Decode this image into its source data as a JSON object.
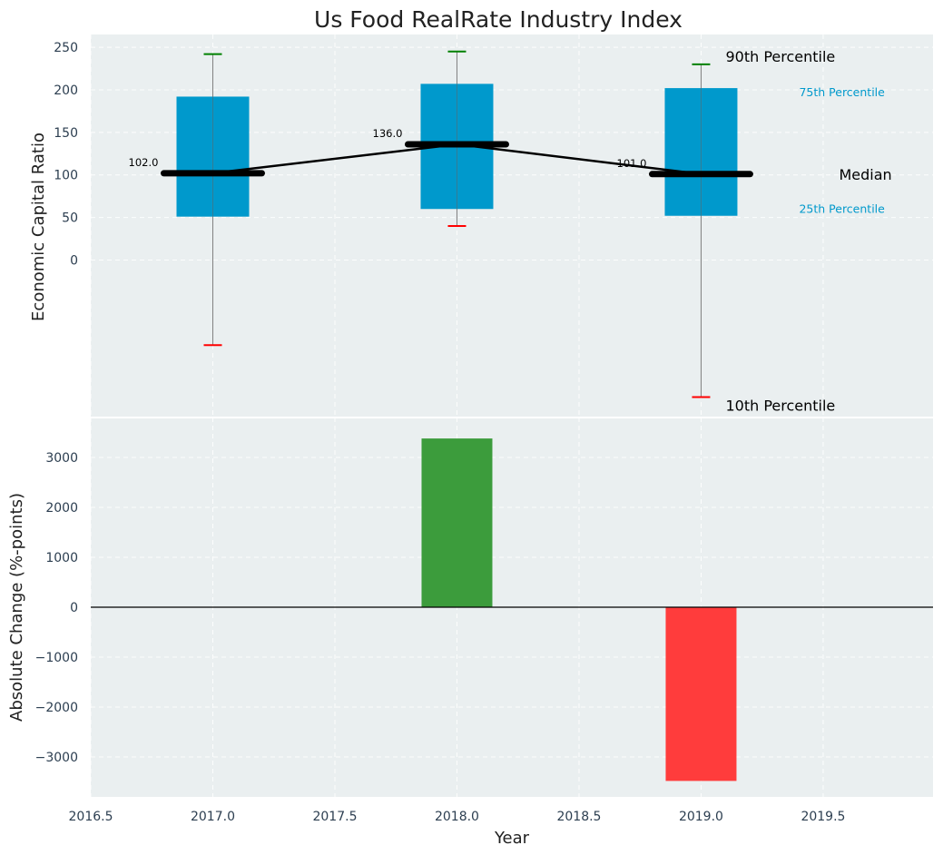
{
  "chart_data": [
    {
      "type": "box",
      "title": "Us Food RealRate Industry Index",
      "ylabel": "Economic Capital Ratio",
      "xlim": [
        2016.5,
        2019.95
      ],
      "ylim": [
        -185,
        265
      ],
      "yticks": [
        0,
        50,
        100,
        150,
        200,
        250
      ],
      "grid": true,
      "boxes": [
        {
          "x": 2017,
          "p10": -100,
          "q1": 51,
          "median": 102,
          "q3": 192,
          "p90": 242
        },
        {
          "x": 2018,
          "p10": 40,
          "q1": 60,
          "median": 136,
          "q3": 207,
          "p90": 245
        },
        {
          "x": 2019,
          "p10": -161,
          "q1": 52,
          "median": 101,
          "q3": 202,
          "p90": 230
        }
      ],
      "median_labels": [
        "102.0",
        "136.0",
        "101.0"
      ],
      "legend": {
        "p90": "90th Percentile",
        "q3": "75th Percentile",
        "median": "Median",
        "q1": "25th Percentile",
        "p10": "10th Percentile"
      },
      "colors": {
        "box": "#0099cc",
        "whisker_top": "#008000",
        "whisker_bottom": "#ff0000",
        "median": "#000000",
        "legend_quartile": "#0099cc",
        "background": "#eaeff0"
      }
    },
    {
      "type": "bar",
      "ylabel": "Absolute Change (%-points)",
      "xlabel": "Year",
      "xlim": [
        2016.5,
        2019.95
      ],
      "ylim": [
        -3800,
        3800
      ],
      "yticks": [
        -3000,
        -2000,
        -1000,
        0,
        1000,
        2000,
        3000
      ],
      "ytick_labels": [
        "−3000",
        "−2000",
        "−1000",
        "0",
        "1000",
        "2000",
        "3000"
      ],
      "xticks": [
        2016.5,
        2017.0,
        2017.5,
        2018.0,
        2018.5,
        2019.0,
        2019.5
      ],
      "xtick_labels": [
        "2016.5",
        "2017.0",
        "2017.5",
        "2018.0",
        "2018.5",
        "2019.0",
        "2019.5"
      ],
      "grid": true,
      "bars": [
        {
          "x": 2018,
          "value": 3380,
          "color": "#3c9c3c"
        },
        {
          "x": 2019,
          "value": -3480,
          "color": "#ff3c3c"
        }
      ]
    }
  ]
}
